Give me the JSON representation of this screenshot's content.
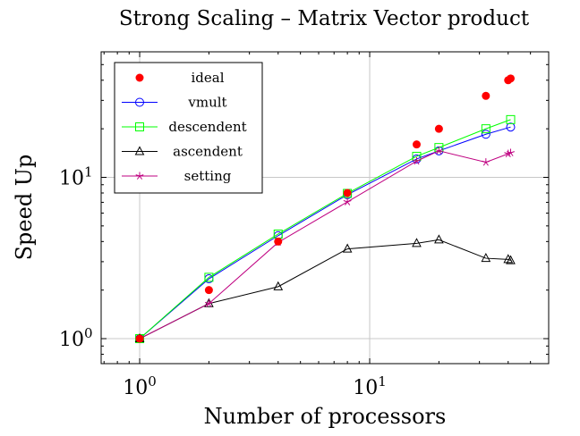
{
  "chart_data": {
    "type": "line",
    "title": "Strong Scaling – Matrix Vector product",
    "xlabel": "Number of processors",
    "ylabel": "Speed Up",
    "xscale": "log",
    "yscale": "log",
    "xlim": [
      0.68,
      60
    ],
    "ylim": [
      0.7,
      60
    ],
    "grid": true,
    "legend_position": "top-left",
    "x_ticks": [
      {
        "value": 1,
        "base": "10",
        "exp": "0"
      },
      {
        "value": 10,
        "base": "10",
        "exp": "1"
      }
    ],
    "y_ticks": [
      {
        "value": 1,
        "base": "10",
        "exp": "0"
      },
      {
        "value": 10,
        "base": "10",
        "exp": "1"
      }
    ],
    "series": [
      {
        "name": "ideal",
        "color": "#ff0000",
        "marker": "filled-circle",
        "line": false,
        "x": [
          1,
          2,
          4,
          8,
          16,
          20,
          32,
          40,
          41
        ],
        "y": [
          1,
          2,
          4,
          8,
          16,
          20,
          32,
          40,
          41
        ]
      },
      {
        "name": "vmult",
        "color": "#0000ff",
        "marker": "open-circle",
        "line": true,
        "x": [
          1,
          2,
          4,
          8,
          16,
          20,
          32,
          41
        ],
        "y": [
          1,
          2.35,
          4.35,
          7.8,
          13.0,
          14.6,
          18.5,
          20.5
        ]
      },
      {
        "name": "descendent",
        "color": "#00ff00",
        "marker": "open-square",
        "line": true,
        "x": [
          1,
          2,
          4,
          8,
          16,
          20,
          32,
          41
        ],
        "y": [
          1,
          2.4,
          4.45,
          7.95,
          13.5,
          15.3,
          20.0,
          22.8
        ]
      },
      {
        "name": "ascendent",
        "color": "#000000",
        "marker": "open-triangle",
        "line": true,
        "x": [
          1,
          2,
          4,
          8,
          16,
          20,
          32,
          40,
          41
        ],
        "y": [
          1,
          1.65,
          2.1,
          3.6,
          3.9,
          4.1,
          3.15,
          3.1,
          3.05
        ]
      },
      {
        "name": "setting",
        "color": "#bf0080",
        "marker": "star",
        "line": true,
        "x": [
          1,
          2,
          4,
          8,
          16,
          20,
          32,
          40,
          41
        ],
        "y": [
          1,
          1.65,
          3.95,
          7.05,
          12.6,
          14.6,
          12.4,
          14.0,
          14.2
        ]
      }
    ]
  }
}
